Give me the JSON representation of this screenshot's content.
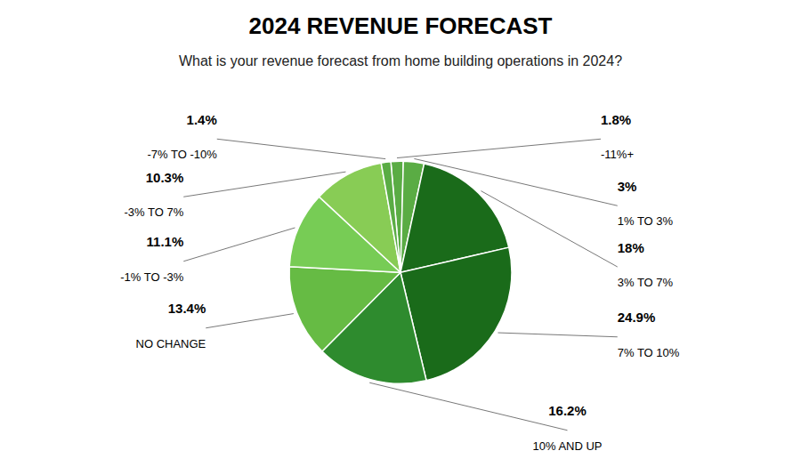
{
  "chart_data": {
    "type": "pie",
    "title": "2024 REVENUE FORECAST",
    "subtitle": "What is your revenue forecast from home building operations in 2024?",
    "categories": [
      "-11%+",
      "1% TO 3%",
      "3% TO 7%",
      "7% TO 10%",
      "10% AND UP",
      "NO CHANGE",
      "-1% TO -3%",
      "-3% TO 7%",
      "-7% TO -10%"
    ],
    "values": [
      1.8,
      3.0,
      18.0,
      24.9,
      16.2,
      13.4,
      11.1,
      10.3,
      1.4
    ],
    "value_labels": [
      "1.8%",
      "3%",
      "18%",
      "24.9%",
      "16.2%",
      "13.4%",
      "11.1%",
      "10.3%",
      "1.4%"
    ],
    "colors": [
      "#5aac44",
      "#5aac44",
      "#1a6b1a",
      "#1a6b1a",
      "#2e8b2e",
      "#66bb44",
      "#77cc55",
      "#88cc55",
      "#5aac44"
    ],
    "data_labels": true
  }
}
